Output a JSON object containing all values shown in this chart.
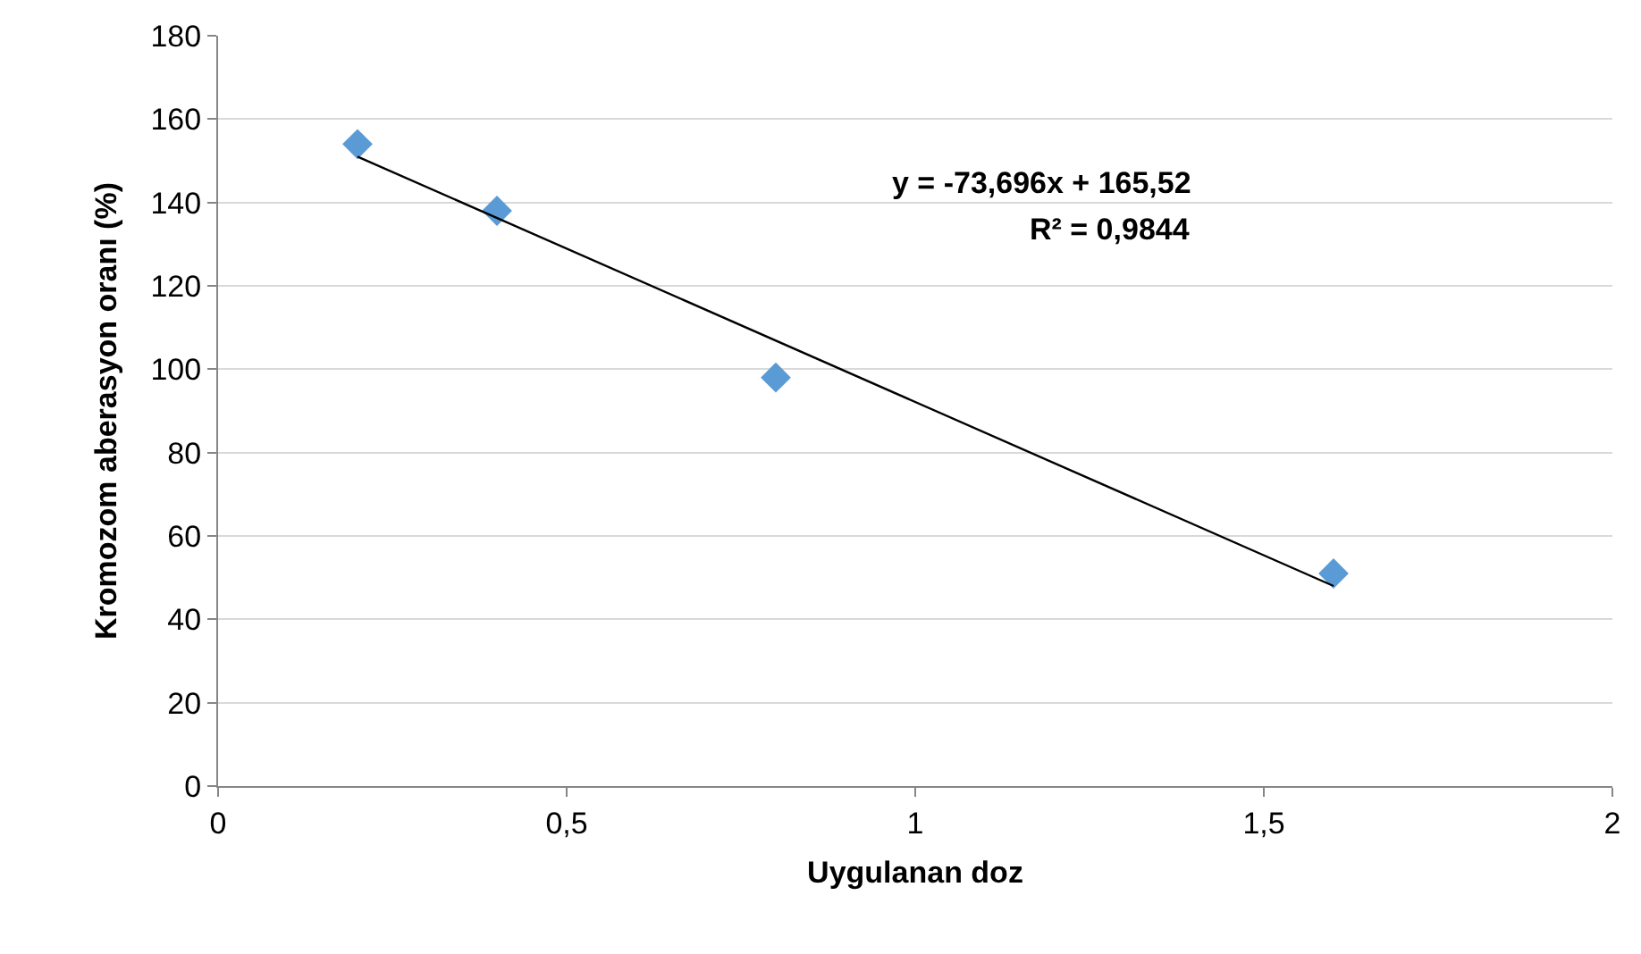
{
  "chart_data": {
    "type": "scatter",
    "xlabel": "Uygulanan doz",
    "ylabel": "Kromozom aberasyon oranı (%)",
    "x": [
      0.2,
      0.4,
      0.8,
      1.6
    ],
    "series": [
      {
        "color": "#5b9bd5",
        "marker": "diamond",
        "values": [
          154,
          138,
          98,
          51
        ]
      },
      {
        "type": "line",
        "color": "#000000",
        "marker": "none",
        "line_style": "solid",
        "x": [
          0.2,
          1.6
        ],
        "values": [
          151,
          48
        ]
      }
    ],
    "xlim": [
      0,
      2
    ],
    "xticks": [
      0,
      {
        "value": 0.5,
        "label": "0,5"
      },
      1,
      {
        "value": 1.5,
        "label": "1,5"
      },
      2
    ],
    "ylim": [
      0,
      180
    ],
    "yticks": [
      0,
      20,
      40,
      60,
      80,
      100,
      120,
      140,
      160,
      180
    ],
    "grid": "y",
    "annotations": [
      "y = -73,696x + 165,52",
      "R² = 0,9844"
    ]
  }
}
